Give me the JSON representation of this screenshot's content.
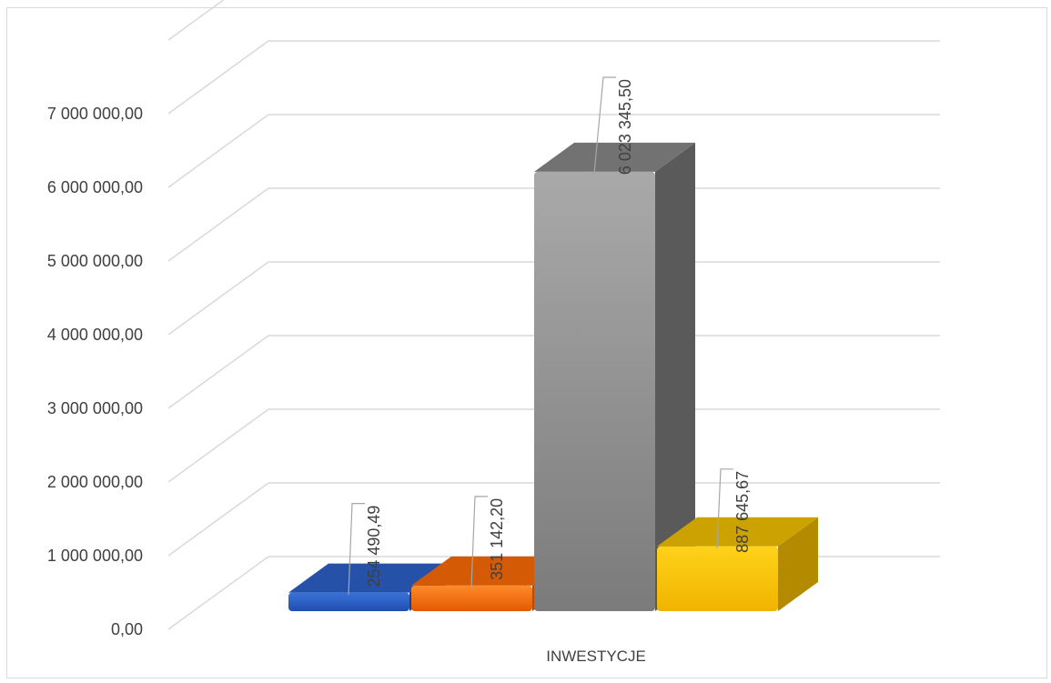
{
  "chart_data": {
    "type": "bar",
    "categories": [
      "INWESTYCJE"
    ],
    "series": [
      {
        "values": [
          254490.49
        ],
        "color": "#2a5fc6",
        "label": "254 490,49"
      },
      {
        "values": [
          351142.2
        ],
        "color": "#f06a0f",
        "label": "351 142,20"
      },
      {
        "values": [
          6023345.5
        ],
        "color": "#8c8c8c",
        "label": "6 023 345,50"
      },
      {
        "values": [
          887645.67
        ],
        "color": "#f5c000",
        "label": "887 645,67"
      }
    ],
    "ylim": [
      0,
      7000000
    ],
    "yticks": [
      {
        "value": 0,
        "label": "0,00"
      },
      {
        "value": 1000000,
        "label": "1 000 000,00"
      },
      {
        "value": 2000000,
        "label": "2 000 000,00"
      },
      {
        "value": 3000000,
        "label": "3 000 000,00"
      },
      {
        "value": 4000000,
        "label": "4 000 000,00"
      },
      {
        "value": 5000000,
        "label": "5 000 000,00"
      },
      {
        "value": 6000000,
        "label": "6 000 000,00"
      },
      {
        "value": 7000000,
        "label": "7 000 000,00"
      }
    ],
    "grid": true,
    "style": "3d-column",
    "legend": "none"
  }
}
